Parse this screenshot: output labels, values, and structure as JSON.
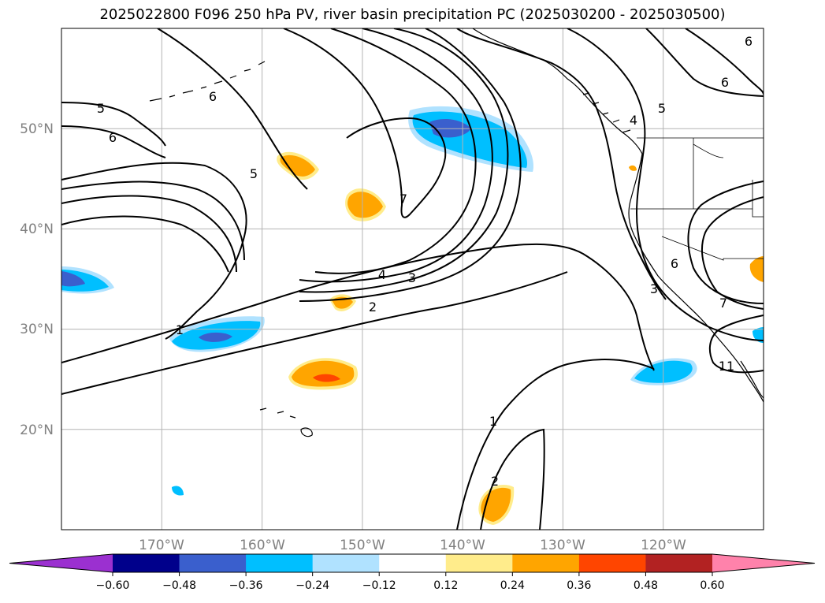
{
  "title": "2025022800 F096 250 hPa PV, river basin precipitation PC (2025030200 - 2025030500)",
  "map": {
    "lon_range": [
      -180,
      -110
    ],
    "lat_range": [
      10,
      60
    ],
    "grid_lines": true,
    "lat_labels": [
      "50°N",
      "40°N",
      "30°N",
      "20°N"
    ],
    "lon_labels": [
      "170°W",
      "160°W",
      "150°W",
      "140°W",
      "130°W",
      "120°W"
    ],
    "contour_labels": [
      "5",
      "6",
      "6",
      "5",
      "7",
      "4",
      "3",
      "2",
      "1",
      "1",
      "2",
      "4",
      "5",
      "6",
      "6",
      "3",
      "7",
      "11",
      "6"
    ]
  },
  "colorbar": {
    "extend": "both",
    "colors": [
      "#9b30d0",
      "#00008b",
      "#3a5fcd",
      "#00bfff",
      "#b0e2ff",
      "#ffffff",
      "#ffec8b",
      "#ffa500",
      "#ff4500",
      "#b22222",
      "#ff82ab"
    ],
    "ticks": [
      "−0.60",
      "−0.48",
      "−0.36",
      "−0.24",
      "−0.12",
      "0.12",
      "0.24",
      "0.36",
      "0.48",
      "0.60"
    ]
  }
}
